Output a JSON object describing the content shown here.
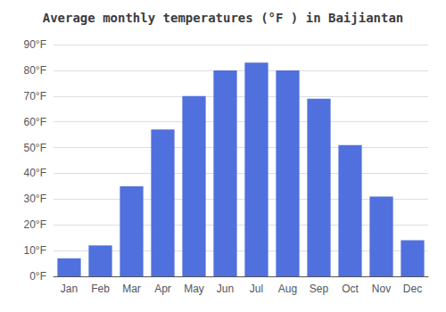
{
  "chart_data": {
    "type": "bar",
    "title": "Average monthly temperatures (°F ) in Baijiantan",
    "categories": [
      "Jan",
      "Feb",
      "Mar",
      "Apr",
      "May",
      "Jun",
      "Jul",
      "Aug",
      "Sep",
      "Oct",
      "Nov",
      "Dec"
    ],
    "values": [
      7,
      12,
      35,
      57,
      70,
      80,
      83,
      80,
      69,
      51,
      31,
      14
    ],
    "ylim": [
      0,
      90
    ],
    "yticks": [
      {
        "value": 0,
        "label": "0°F"
      },
      {
        "value": 10,
        "label": "10°F"
      },
      {
        "value": 20,
        "label": "20°F"
      },
      {
        "value": 30,
        "label": "30°F"
      },
      {
        "value": 40,
        "label": "40°F"
      },
      {
        "value": 50,
        "label": "50°F"
      },
      {
        "value": 60,
        "label": "60°F"
      },
      {
        "value": 70,
        "label": "70°F"
      },
      {
        "value": 80,
        "label": "80°F"
      },
      {
        "value": 90,
        "label": "90°F"
      }
    ],
    "grid": true
  }
}
